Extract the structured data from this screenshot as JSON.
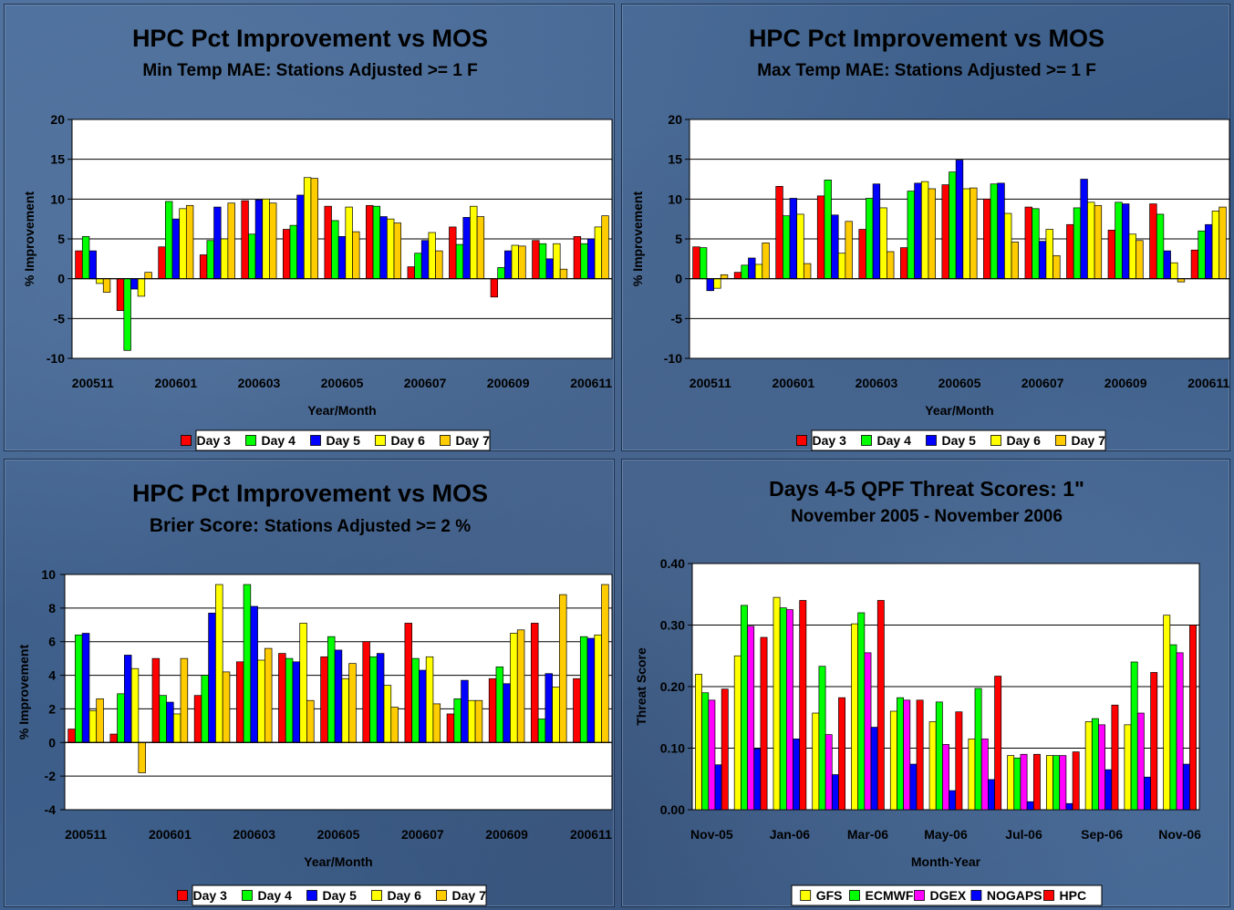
{
  "chart_data": [
    {
      "type": "bar",
      "title": "HPC Pct Improvement vs MOS",
      "subtitle": "Min Temp MAE:  Stations Adjusted >= 1 F",
      "xlabel": "Year/Month",
      "ylabel": "% Improvement",
      "ylim": [
        -10,
        20
      ],
      "yticks": [
        -10,
        -5,
        0,
        5,
        10,
        15,
        20
      ],
      "grid": true,
      "legend_position": "bottom",
      "categories": [
        "200511",
        "200512",
        "200601",
        "200602",
        "200603",
        "200604",
        "200605",
        "200606",
        "200607",
        "200608",
        "200609",
        "200610",
        "200611"
      ],
      "x_tick_labels": [
        "200511",
        "200601",
        "200603",
        "200605",
        "200607",
        "200609",
        "200611"
      ],
      "series": [
        {
          "name": "Day 3",
          "color": "#ff0000",
          "values": [
            3.5,
            -4.0,
            4.0,
            3.0,
            9.8,
            6.2,
            9.1,
            9.2,
            1.5,
            6.5,
            -2.3,
            4.8,
            5.3
          ]
        },
        {
          "name": "Day 4",
          "color": "#00ff00",
          "values": [
            5.3,
            -9.0,
            9.7,
            4.8,
            5.6,
            6.7,
            7.3,
            9.1,
            3.2,
            4.3,
            1.4,
            4.4,
            4.4
          ]
        },
        {
          "name": "Day 5",
          "color": "#0000ff",
          "values": [
            3.5,
            -1.3,
            7.5,
            9.0,
            9.9,
            10.5,
            5.3,
            7.8,
            4.8,
            7.7,
            3.5,
            2.5,
            5.0
          ]
        },
        {
          "name": "Day 6",
          "color": "#ffff00",
          "values": [
            -0.6,
            -2.2,
            8.8,
            5.0,
            10.0,
            12.7,
            9.0,
            7.5,
            5.8,
            9.1,
            4.2,
            4.4,
            6.5
          ]
        },
        {
          "name": "Day 7",
          "color": "#ffcc00",
          "values": [
            -1.7,
            0.8,
            9.2,
            9.5,
            9.5,
            12.6,
            5.9,
            7.0,
            3.5,
            7.8,
            4.1,
            1.2,
            7.9
          ]
        }
      ]
    },
    {
      "type": "bar",
      "title": "HPC Pct Improvement vs MOS",
      "subtitle": "Max Temp MAE:  Stations Adjusted >= 1 F",
      "xlabel": "Year/Month",
      "ylabel": "% Improvement",
      "ylim": [
        -10,
        20
      ],
      "yticks": [
        -10,
        -5,
        0,
        5,
        10,
        15,
        20
      ],
      "grid": true,
      "legend_position": "bottom",
      "categories": [
        "200511",
        "200512",
        "200601",
        "200602",
        "200603",
        "200604",
        "200605",
        "200606",
        "200607",
        "200608",
        "200609",
        "200610",
        "200611"
      ],
      "x_tick_labels": [
        "200511",
        "200601",
        "200603",
        "200605",
        "200607",
        "200609",
        "200611"
      ],
      "series": [
        {
          "name": "Day 3",
          "color": "#ff0000",
          "values": [
            4.0,
            0.8,
            11.6,
            10.4,
            6.2,
            3.9,
            11.8,
            10.0,
            9.0,
            6.8,
            6.1,
            9.4,
            3.6
          ]
        },
        {
          "name": "Day 4",
          "color": "#00ff00",
          "values": [
            3.9,
            1.7,
            7.9,
            12.4,
            10.1,
            11.0,
            13.4,
            11.9,
            8.8,
            8.9,
            9.6,
            8.1,
            6.0
          ]
        },
        {
          "name": "Day 5",
          "color": "#0000ff",
          "values": [
            -1.5,
            2.6,
            10.1,
            8.0,
            11.9,
            12.0,
            14.9,
            12.0,
            4.7,
            12.5,
            9.4,
            3.5,
            6.8
          ]
        },
        {
          "name": "Day 6",
          "color": "#ffff00",
          "values": [
            -1.2,
            1.8,
            8.1,
            3.2,
            8.9,
            12.2,
            11.3,
            8.2,
            6.2,
            9.6,
            5.6,
            2.0,
            8.5
          ]
        },
        {
          "name": "Day 7",
          "color": "#ffcc00",
          "values": [
            0.5,
            4.5,
            1.9,
            7.2,
            3.4,
            11.3,
            11.4,
            4.6,
            2.9,
            9.2,
            4.8,
            -0.4,
            9.0
          ]
        }
      ]
    },
    {
      "type": "bar",
      "title": "HPC Pct Improvement vs MOS",
      "subtitle_prefix": "Brier Score:",
      "subtitle": "Stations Adjusted >= 2 %",
      "xlabel": "Year/Month",
      "ylabel": "% Improvement",
      "ylim": [
        -4,
        10
      ],
      "yticks": [
        -4,
        -2,
        0,
        2,
        4,
        6,
        8,
        10
      ],
      "grid": true,
      "legend_position": "bottom",
      "categories": [
        "200511",
        "200512",
        "200601",
        "200602",
        "200603",
        "200604",
        "200605",
        "200606",
        "200607",
        "200608",
        "200609",
        "200610",
        "200611"
      ],
      "x_tick_labels": [
        "200511",
        "200601",
        "200603",
        "200605",
        "200607",
        "200609",
        "200611"
      ],
      "series": [
        {
          "name": "Day 3",
          "color": "#ff0000",
          "values": [
            0.8,
            0.5,
            5.0,
            2.8,
            4.8,
            5.3,
            5.1,
            6.0,
            7.1,
            1.7,
            3.8,
            7.1,
            3.8
          ]
        },
        {
          "name": "Day 4",
          "color": "#00ff00",
          "values": [
            6.4,
            2.9,
            2.8,
            4.0,
            9.4,
            5.0,
            6.3,
            5.1,
            5.0,
            2.6,
            4.5,
            1.4,
            6.3
          ]
        },
        {
          "name": "Day 5",
          "color": "#0000ff",
          "values": [
            6.5,
            5.2,
            2.4,
            7.7,
            8.1,
            4.8,
            5.5,
            5.3,
            4.3,
            3.7,
            3.5,
            4.1,
            6.2
          ]
        },
        {
          "name": "Day 6",
          "color": "#ffff00",
          "values": [
            1.9,
            4.4,
            1.7,
            9.4,
            4.9,
            7.1,
            3.8,
            3.4,
            5.1,
            2.5,
            6.5,
            3.3,
            6.4
          ]
        },
        {
          "name": "Day 7",
          "color": "#ffcc00",
          "values": [
            2.6,
            -1.8,
            5.0,
            4.2,
            5.6,
            2.5,
            4.7,
            2.1,
            2.3,
            2.5,
            6.7,
            8.8,
            9.4
          ]
        }
      ]
    },
    {
      "type": "bar",
      "title": "Days 4-5 QPF Threat Scores:  1\"",
      "subtitle": "November 2005 - November 2006",
      "xlabel": "Month-Year",
      "ylabel": "Threat Score",
      "ylim": [
        0,
        0.4
      ],
      "yticks": [
        "0.00",
        "0.10",
        "0.20",
        "0.30",
        "0.40"
      ],
      "grid": true,
      "legend_position": "bottom",
      "categories": [
        "Nov-05",
        "Dec-05",
        "Jan-06",
        "Feb-06",
        "Mar-06",
        "Apr-06",
        "May-06",
        "Jun-06",
        "Jul-06",
        "Aug-06",
        "Sep-06",
        "Oct-06",
        "Nov-06"
      ],
      "x_tick_labels": [
        "Nov-05",
        "Jan-06",
        "Mar-06",
        "May-06",
        "Jul-06",
        "Sep-06",
        "Nov-06"
      ],
      "series": [
        {
          "name": "GFS",
          "color": "#ffff00",
          "values": [
            0.22,
            0.25,
            0.345,
            0.157,
            0.302,
            0.16,
            0.143,
            0.115,
            0.088,
            0.088,
            0.143,
            0.138,
            0.316
          ]
        },
        {
          "name": "ECMWF",
          "color": "#00ff00",
          "values": [
            0.19,
            0.332,
            0.328,
            0.233,
            0.32,
            0.182,
            0.175,
            0.197,
            0.084,
            0.088,
            0.148,
            0.24,
            0.268
          ]
        },
        {
          "name": "DGEX",
          "color": "#ff00ff",
          "values": [
            0.178,
            0.298,
            0.325,
            0.122,
            0.255,
            0.178,
            0.106,
            0.115,
            0.09,
            0.088,
            0.138,
            0.157,
            0.255
          ]
        },
        {
          "name": "NOGAPS",
          "color": "#0000ff",
          "values": [
            0.073,
            0.099,
            0.115,
            0.057,
            0.134,
            0.074,
            0.031,
            0.049,
            0.013,
            0.01,
            0.065,
            0.053,
            0.074
          ]
        },
        {
          "name": "HPC",
          "color": "#ff0000",
          "values": [
            0.196,
            0.28,
            0.34,
            0.182,
            0.34,
            0.178,
            0.159,
            0.217,
            0.09,
            0.094,
            0.17,
            0.223,
            0.3
          ]
        }
      ]
    }
  ]
}
